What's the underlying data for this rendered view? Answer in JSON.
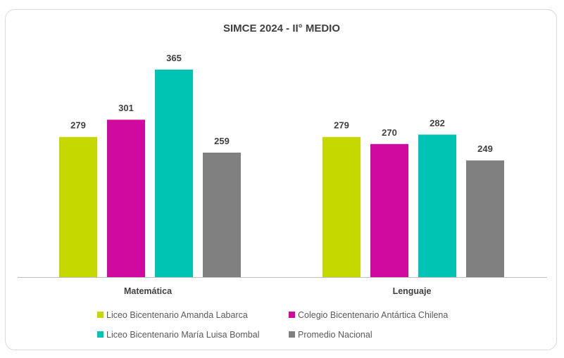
{
  "chart_data": {
    "type": "bar",
    "title": "SIMCE 2024  - II° MEDIO",
    "categories": [
      "Matemática",
      "Lenguaje"
    ],
    "series": [
      {
        "name": "Liceo Bicentenario Amanda Labarca",
        "color": "#c5d900",
        "values": [
          279,
          279
        ]
      },
      {
        "name": "Colegio Bicentenario Antártica Chilena",
        "color": "#d0099f",
        "values": [
          301,
          270
        ]
      },
      {
        "name": "Liceo Bicentenario María Luisa Bombal",
        "color": "#00c4b3",
        "values": [
          365,
          282
        ]
      },
      {
        "name": "Promedio Nacional",
        "color": "#808080",
        "values": [
          259,
          249
        ]
      }
    ],
    "xlabel": "",
    "ylabel": "",
    "ylim": [
      100,
      385
    ],
    "grid": false,
    "legend": "bottom"
  }
}
